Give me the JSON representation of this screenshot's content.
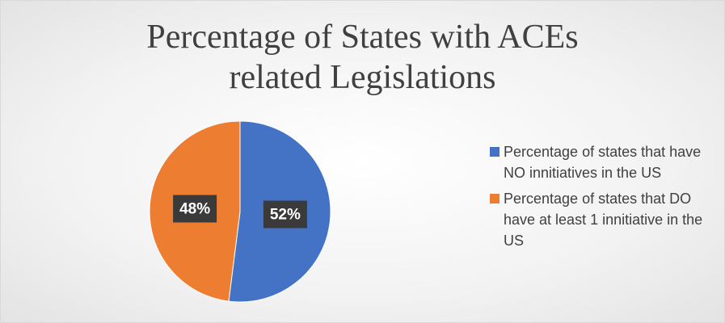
{
  "chart_data": {
    "type": "pie",
    "title": "Percentage of States with ACEs related Legislations",
    "categories": [
      "Percentage of states that have NO innitiatives in the US",
      "Percentage of states that DO have at least 1 innitiative in the US"
    ],
    "values": [
      52,
      48
    ],
    "value_labels": [
      "52%",
      "48%"
    ],
    "colors": [
      "#4472c4",
      "#ed7d31"
    ],
    "legend": "right"
  }
}
